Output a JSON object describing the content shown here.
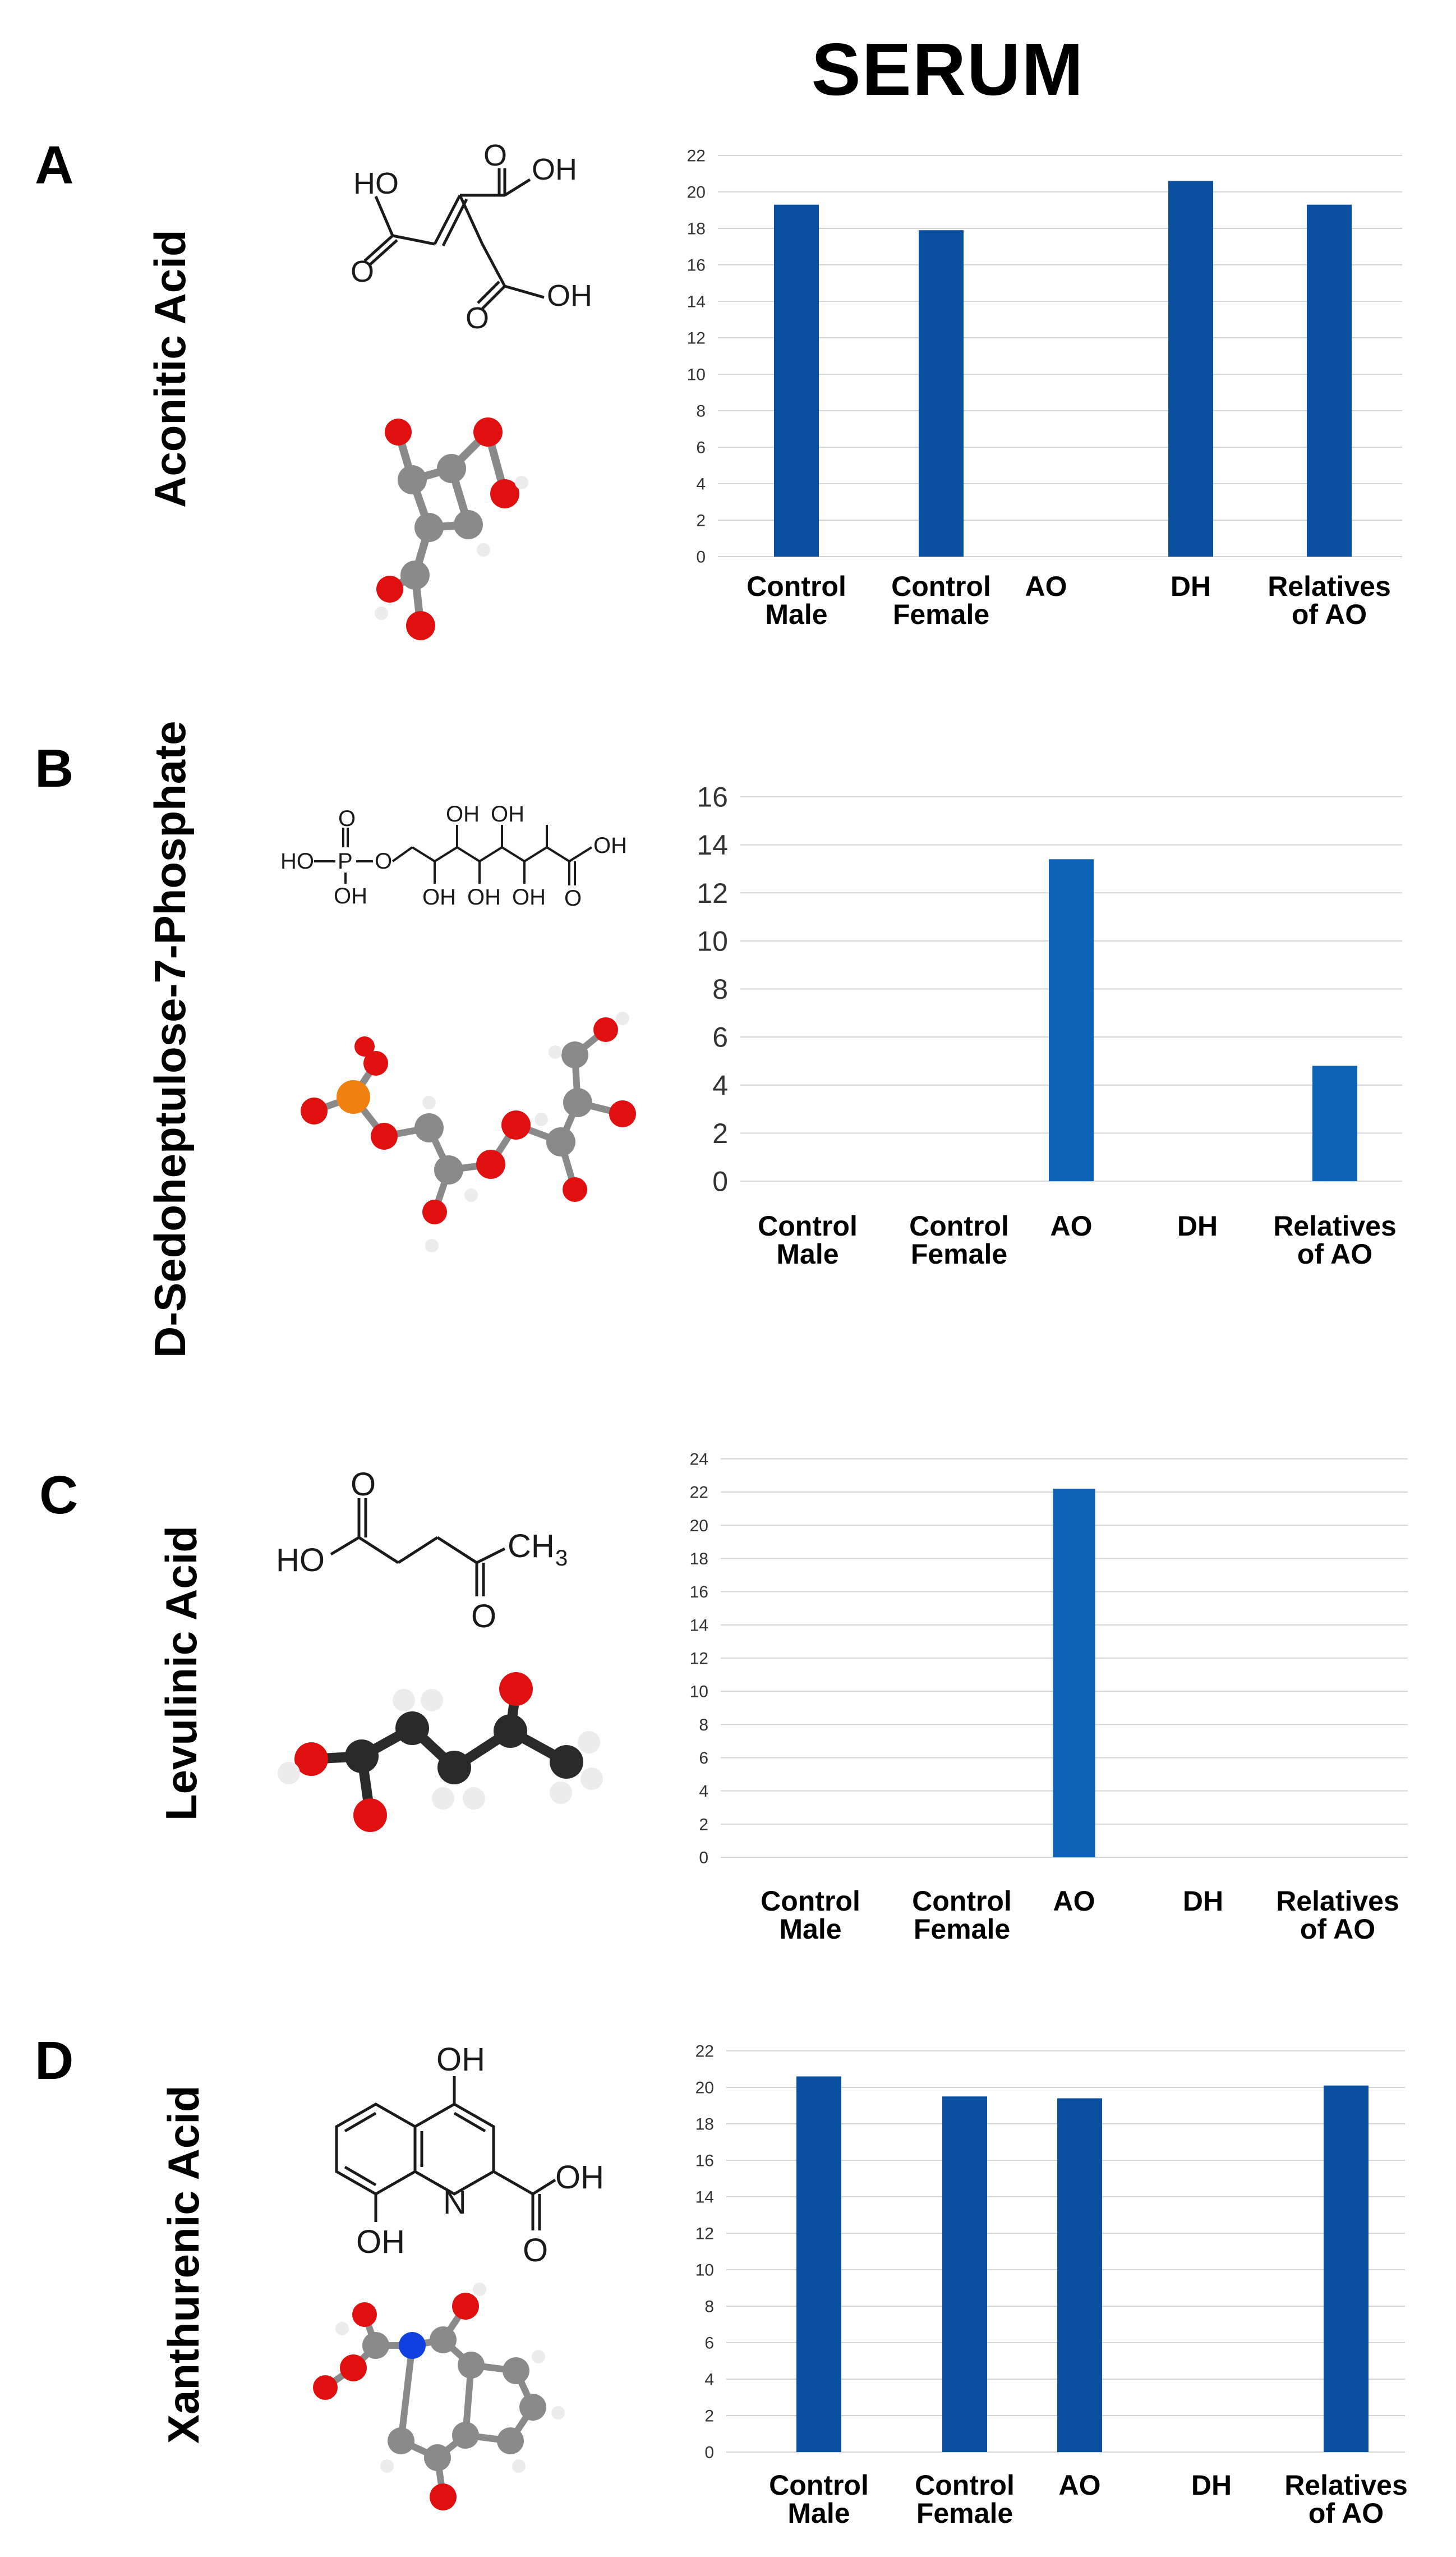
{
  "page": {
    "title": "SERUM"
  },
  "colors": {
    "bar_dark": "#0a4fa0",
    "bar_mid": "#0d62b5",
    "grid": "#d4d4d4",
    "atom_carbon": "#8a8a8a",
    "atom_oxygen": "#e01010",
    "atom_hydrogen": "#ececec",
    "atom_phosphorus": "#f08010",
    "atom_nitrogen": "#1040e0",
    "atom_carbon_dark": "#2a2a2a"
  },
  "panels": [
    {
      "letter": "A",
      "compound": "Aconitic Acid",
      "structure": {
        "atom_labels": [
          "HO",
          "O",
          "OH",
          "O",
          "O",
          "OH"
        ],
        "bond_style": "skeletal",
        "ball_icon": "aconitic-acid-ball-and-stick-icon"
      }
    },
    {
      "letter": "B",
      "compound": "D-Sedoheptulose-7-Phosphate",
      "structure": {
        "atom_labels": [
          "O",
          "HO",
          "P",
          "O",
          "OH",
          "OH",
          "OH",
          "OH",
          "OH",
          "OH",
          "O",
          "OH"
        ],
        "bond_style": "skeletal",
        "ball_icon": "sedoheptulose-ball-and-stick-icon"
      }
    },
    {
      "letter": "C",
      "compound": "Levulinic Acid",
      "structure": {
        "atom_labels": [
          "O",
          "HO",
          "CH",
          "3",
          "O"
        ],
        "bond_style": "skeletal",
        "ball_icon": "levulinic-acid-ball-and-stick-icon"
      }
    },
    {
      "letter": "D",
      "compound": "Xanthurenic Acid",
      "structure": {
        "atom_labels": [
          "OH",
          "N",
          "OH",
          "OH",
          "O"
        ],
        "bond_style": "skeletal",
        "ball_icon": "xanthurenic-acid-ball-and-stick-icon"
      }
    }
  ],
  "chart_data": [
    {
      "type": "bar",
      "title": "Aconitic Acid",
      "categories": [
        [
          "Control",
          "Male"
        ],
        [
          "Control",
          "Female"
        ],
        [
          "AO"
        ],
        [
          "DH"
        ],
        [
          "Relatives",
          "of AO"
        ]
      ],
      "values": [
        19.3,
        17.9,
        0,
        20.6,
        19.3
      ],
      "ylim": [
        0,
        22
      ],
      "yticks": [
        0,
        2,
        4,
        6,
        8,
        10,
        12,
        14,
        16,
        18,
        20,
        22
      ],
      "xlabel": "",
      "ylabel": "",
      "grid": true,
      "legend": "none"
    },
    {
      "type": "bar",
      "title": "D-Sedoheptulose-7-Phosphate",
      "categories": [
        [
          "Control",
          "Male"
        ],
        [
          "Control",
          "Female"
        ],
        [
          "AO"
        ],
        [
          "DH"
        ],
        [
          "Relatives",
          "of AO"
        ]
      ],
      "values": [
        0,
        0,
        13.4,
        0,
        4.8
      ],
      "ylim": [
        0,
        16
      ],
      "yticks": [
        0,
        2,
        4,
        6,
        8,
        10,
        12,
        14,
        16
      ],
      "xlabel": "",
      "ylabel": "",
      "grid": true,
      "legend": "none"
    },
    {
      "type": "bar",
      "title": "Levulinic Acid",
      "categories": [
        [
          "Control",
          "Male"
        ],
        [
          "Control",
          "Female"
        ],
        [
          "AO"
        ],
        [
          "DH"
        ],
        [
          "Relatives",
          "of AO"
        ]
      ],
      "values": [
        0,
        0,
        22.2,
        0,
        0
      ],
      "ylim": [
        0,
        24
      ],
      "yticks": [
        0,
        2,
        4,
        6,
        8,
        10,
        12,
        14,
        16,
        18,
        20,
        22,
        24
      ],
      "xlabel": "",
      "ylabel": "",
      "grid": true,
      "legend": "none"
    },
    {
      "type": "bar",
      "title": "Xanthurenic Acid",
      "categories": [
        [
          "Control",
          "Male"
        ],
        [
          "Control",
          "Female"
        ],
        [
          "AO"
        ],
        [
          "DH"
        ],
        [
          "Relatives",
          "of AO"
        ]
      ],
      "values": [
        20.6,
        19.5,
        19.4,
        0,
        20.1
      ],
      "ylim": [
        0,
        22
      ],
      "yticks": [
        0,
        2,
        4,
        6,
        8,
        10,
        12,
        14,
        16,
        18,
        20,
        22
      ],
      "xlabel": "",
      "ylabel": "",
      "grid": true,
      "legend": "none"
    }
  ]
}
